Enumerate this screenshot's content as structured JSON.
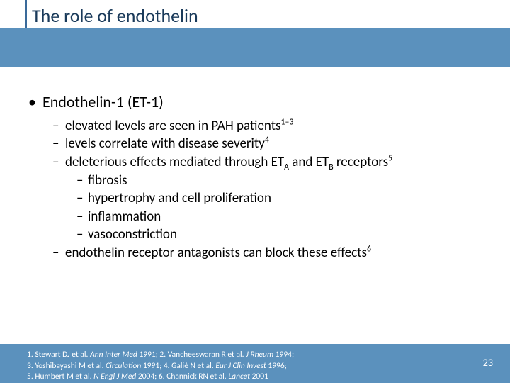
{
  "colors": {
    "band": "#5b91bd",
    "title_bar": "#3a6a9a",
    "title_text": "#1a3a5a",
    "body_text": "#000000",
    "footer_text": "#ffffff",
    "background": "#ffffff"
  },
  "title": "The role of endothelin",
  "content": {
    "l1": "Endothelin-1 (ET-1)",
    "sub": [
      {
        "pre": "elevated levels are seen in PAH patients",
        "sup": "1–3"
      },
      {
        "pre": "levels correlate with disease severity",
        "sup": "4"
      },
      {
        "pre": "deleterious effects mediated through ET",
        "subA": "A",
        "mid": " and ET",
        "subB": "B",
        "post": " receptors",
        "sup": "5",
        "children": [
          "fibrosis",
          "hypertrophy and cell proliferation",
          "inflammation",
          "vasoconstriction"
        ]
      },
      {
        "pre": "endothelin receptor antagonists can block these effects",
        "sup": "6"
      }
    ]
  },
  "footer": {
    "line1": {
      "a": "1. Stewart DJ et al. ",
      "ai": "Ann Inter Med",
      "b": " 1991; 2. Vancheeswaran R et al. ",
      "bi": "J Rheum",
      "c": " 1994;"
    },
    "line2": {
      "a": "3. Yoshibayashi M et al. ",
      "ai": "Circulation",
      "b": " 1991; 4. Galiè N et al. ",
      "bi": "Eur J Clin Invest",
      "c": " 1996;"
    },
    "line3": {
      "a": "5. Humbert M et al. ",
      "ai": "N Engl J Med",
      "b": " 2004; 6. Channick RN et al. ",
      "bi": "Lancet",
      "c": " 2001"
    }
  },
  "page_number": "23"
}
